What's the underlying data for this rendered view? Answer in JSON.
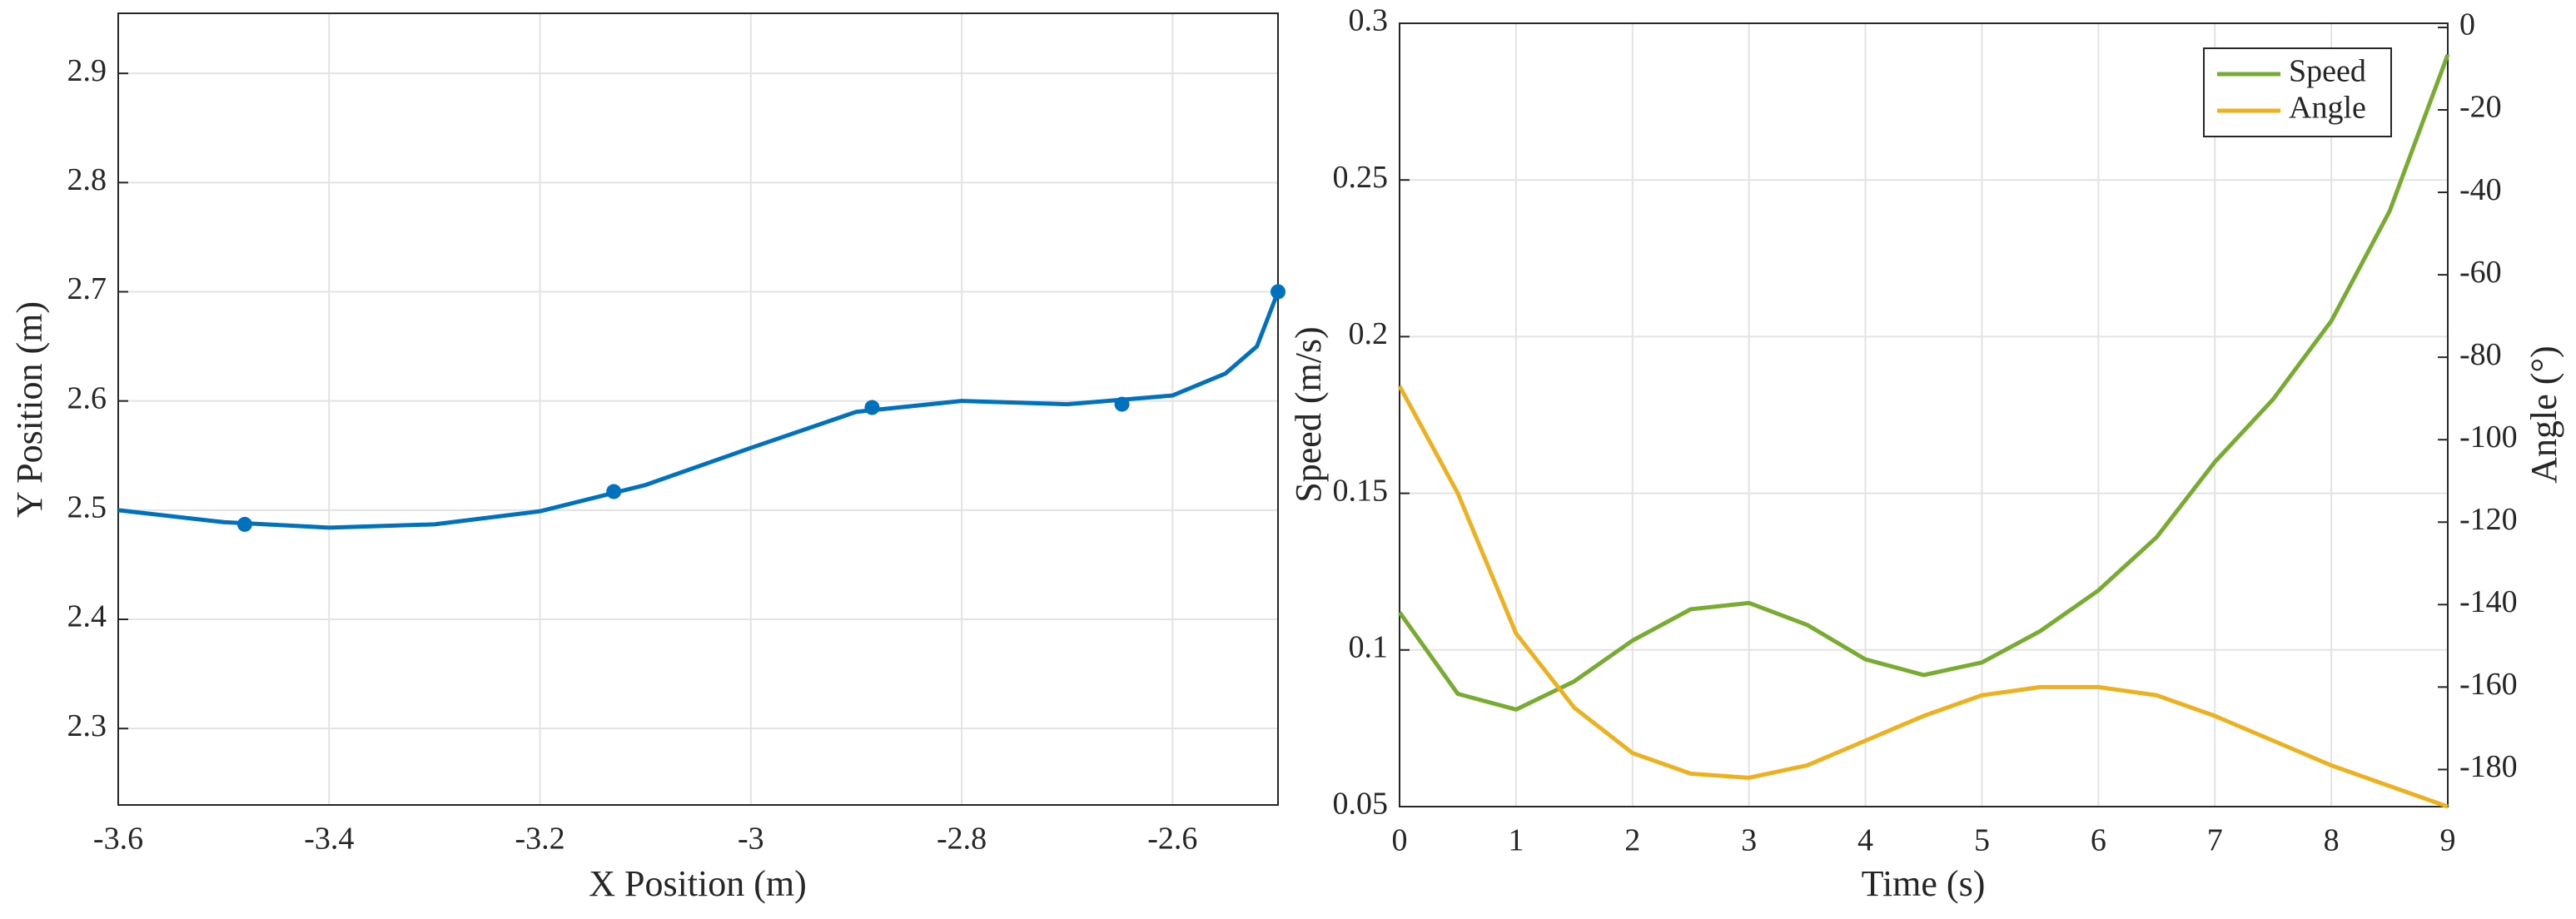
{
  "chart_data": [
    {
      "type": "line",
      "xlabel": "X Position (m)",
      "ylabel": "Y Position (m)",
      "xlim": [
        -3.6,
        -2.5
      ],
      "xticks": [
        -3.6,
        -3.4,
        -3.2,
        -3,
        -2.8,
        -2.6
      ],
      "ylim": [
        2.23,
        2.955
      ],
      "yticks": [
        2.3,
        2.4,
        2.5,
        2.6,
        2.7,
        2.8,
        2.9
      ],
      "grid": true,
      "series": [
        {
          "color": "#0072bd",
          "mode": "line",
          "x": [
            -3.6,
            -3.5,
            -3.4,
            -3.3,
            -3.2,
            -3.1,
            -3.0,
            -2.9,
            -2.8,
            -2.7,
            -2.6,
            -2.55,
            -2.52,
            -2.5
          ],
          "values": [
            2.5,
            2.489,
            2.484,
            2.487,
            2.499,
            2.523,
            2.557,
            2.59,
            2.6,
            2.597,
            2.605,
            2.625,
            2.65,
            2.7
          ]
        },
        {
          "color": "#0072bd",
          "mode": "markers",
          "x": [
            -3.48,
            -3.13,
            -2.885,
            -2.648,
            -2.5
          ],
          "values": [
            2.487,
            2.517,
            2.594,
            2.597,
            2.7
          ]
        }
      ]
    },
    {
      "type": "line",
      "xlabel": "Time (s)",
      "ylabel": "Speed (m/s)",
      "y2label": "Angle (°)",
      "xlim": [
        0,
        9
      ],
      "xticks": [
        0,
        1,
        2,
        3,
        4,
        5,
        6,
        7,
        8,
        9
      ],
      "ylim": [
        0.05,
        0.3
      ],
      "yticks": [
        0.05,
        0.1,
        0.15,
        0.2,
        0.25,
        0.3
      ],
      "y2lim": [
        -189,
        1
      ],
      "y2ticks": [
        0,
        -20,
        -40,
        -60,
        -80,
        -100,
        -120,
        -140,
        -160,
        -180
      ],
      "grid": true,
      "legend": "northeast",
      "x": [
        0,
        0.5,
        1,
        1.5,
        2,
        2.5,
        3,
        3.5,
        4,
        4.5,
        5,
        5.5,
        6,
        6.5,
        7,
        7.5,
        8,
        8.5,
        9
      ],
      "series": [
        {
          "name": "Speed",
          "color": "#77ac30",
          "values": [
            0.112,
            0.086,
            0.081,
            0.09,
            0.103,
            0.113,
            0.115,
            0.108,
            0.097,
            0.092,
            0.096,
            0.106,
            0.119,
            0.136,
            0.16,
            0.18,
            0.205,
            0.24,
            0.29
          ]
        },
        {
          "name": "Angle",
          "color": "#edb120",
          "axis": "y2",
          "values": [
            -87,
            -113,
            -147,
            -165,
            -176,
            -181,
            -182,
            -179,
            -173,
            -167,
            -162,
            -160,
            -160,
            -162,
            -167,
            -173,
            -179,
            -184,
            -189
          ]
        }
      ]
    }
  ]
}
